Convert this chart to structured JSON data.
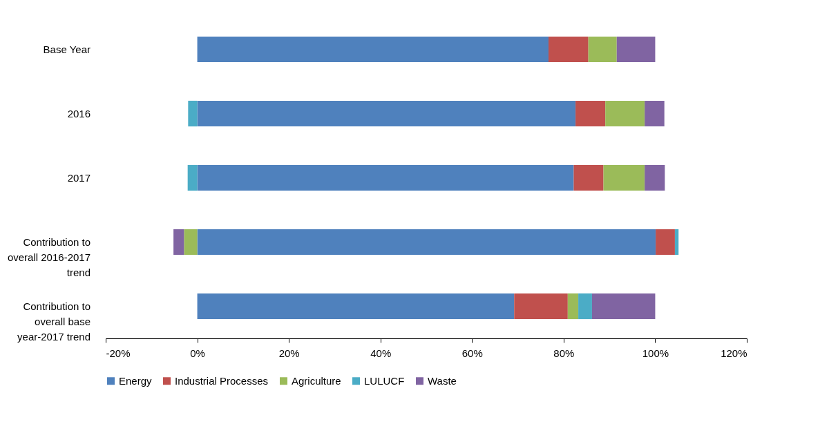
{
  "chart_data": {
    "type": "bar",
    "orientation": "horizontal",
    "stacked": true,
    "categories": [
      "Base Year",
      "2016",
      "2017",
      "Contribution to overall 2016-2017 trend",
      "Contribution to overall base year-2017 trend"
    ],
    "series": [
      {
        "name": "Energy",
        "color": "#4f81bd",
        "values": [
          76.7,
          82.6,
          82.2,
          100.1,
          69.2
        ]
      },
      {
        "name": "Industrial Processes",
        "color": "#c0504d",
        "values": [
          8.7,
          6.5,
          6.5,
          4.2,
          11.7
        ]
      },
      {
        "name": "Agriculture",
        "color": "#9bbb59",
        "values": [
          6.2,
          8.6,
          9.0,
          -2.9,
          2.3
        ]
      },
      {
        "name": "LULUCF",
        "color": "#4bacc6",
        "values": [
          0,
          -2.0,
          -2.1,
          0.8,
          3.0
        ]
      },
      {
        "name": "Waste",
        "color": "#8064a2",
        "values": [
          8.4,
          4.3,
          4.4,
          -2.3,
          13.8
        ]
      }
    ],
    "xlim": [
      -20,
      120
    ],
    "xticks": [
      {
        "value": -20,
        "label": "-20%"
      },
      {
        "value": 0,
        "label": "0%"
      },
      {
        "value": 20,
        "label": "20%"
      },
      {
        "value": 40,
        "label": "40%"
      },
      {
        "value": 60,
        "label": "60%"
      },
      {
        "value": 80,
        "label": "80%"
      },
      {
        "value": 100,
        "label": "100%"
      },
      {
        "value": 120,
        "label": "120%"
      }
    ],
    "grid": false,
    "legend": "bottom"
  }
}
